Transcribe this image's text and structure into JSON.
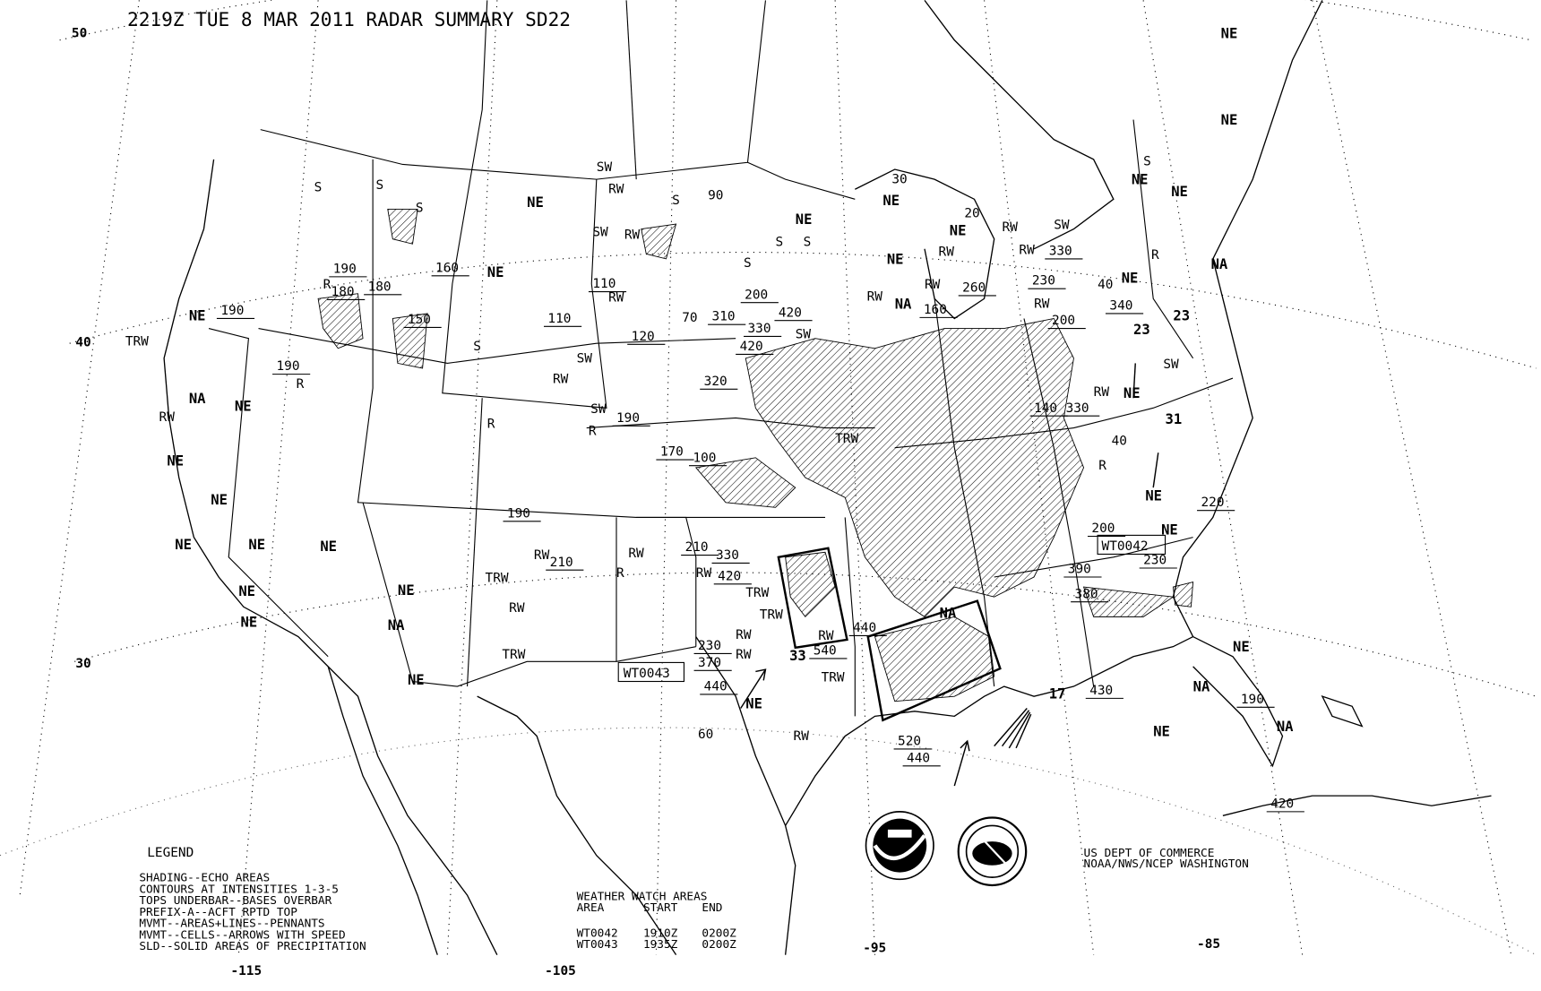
{
  "header": {
    "title": "2219Z TUE  8 MAR 2011 RADAR SUMMARY SD22"
  },
  "latitude_labels": [
    "50",
    "40",
    "30"
  ],
  "longitude_labels": [
    "-115",
    "-105",
    "-95",
    "-85"
  ],
  "map_labels": [
    "NE",
    "NE",
    "NE",
    "NE",
    "NE",
    "NE",
    "NE",
    "NE",
    "NE",
    "NE",
    "NE",
    "NE",
    "NE",
    "NE",
    "NE",
    "NE",
    "NE",
    "NE",
    "NE",
    "NE",
    "NE",
    "NE",
    "NE",
    "NE",
    "NE",
    "NE",
    "NE",
    "NE",
    "NA",
    "NA",
    "NA",
    "NA",
    "NA",
    "NA",
    "NA",
    "RW",
    "RW",
    "RW",
    "RW",
    "RW",
    "RW",
    "RW",
    "RW",
    "RW",
    "RW",
    "RW",
    "RW",
    "RW",
    "RW",
    "RW",
    "RW",
    "RW",
    "RW",
    "RW",
    "RW",
    "TRW",
    "TRW",
    "TRW",
    "TRW",
    "TRW",
    "TRW",
    "TRW",
    "S",
    "S",
    "S",
    "S",
    "S",
    "S",
    "S",
    "S",
    "S",
    "SW",
    "SW",
    "SW",
    "SW",
    "SW",
    "SW",
    "SW",
    "R",
    "R",
    "R",
    "R",
    "R",
    "R",
    "R"
  ],
  "tops_labels": [
    "190",
    "180",
    "180",
    "190",
    "160",
    "150",
    "190",
    "110",
    "110",
    "70",
    "310",
    "120",
    "200",
    "420",
    "330",
    "420",
    "320",
    "190",
    "170",
    "100",
    "190",
    "210",
    "210",
    "330",
    "420",
    "230",
    "370",
    "440",
    "60",
    "540",
    "440",
    "520",
    "440",
    "30",
    "20",
    "160",
    "260",
    "230",
    "330",
    "40",
    "340",
    "200",
    "140",
    "330",
    "40",
    "200",
    "230",
    "220",
    "390",
    "380",
    "430",
    "190",
    "420",
    "90",
    "23",
    "31",
    "33",
    "23",
    "17"
  ],
  "watch_labels": [
    "WT0042",
    "WT0043"
  ],
  "legend": {
    "title": "LEGEND",
    "lines": [
      "SHADING--ECHO AREAS",
      "CONTOURS AT INTENSITIES 1-3-5",
      "TOPS UNDERBAR--BASES OVERBAR",
      "PREFIX-A--ACFT RPTD TOP",
      "MVMT--AREAS+LINES--PENNANTS",
      "MVMT--CELLS--ARROWS WITH SPEED",
      "SLD--SOLID AREAS OF PRECIPITATION"
    ]
  },
  "watch_table": {
    "title": "WEATHER WATCH AREAS",
    "headers": [
      "AREA",
      "START",
      "END"
    ],
    "rows": [
      [
        "WT0042",
        "1910Z",
        "0200Z"
      ],
      [
        "WT0043",
        "1935Z",
        "0200Z"
      ]
    ]
  },
  "credits": {
    "line1": "US DEPT OF COMMERCE",
    "line2": "NOAA/NWS/NCEP WASHINGTON",
    "logo_noaa": "NOAA",
    "logo_nws": "NATIONAL WEATHER SERVICE"
  }
}
